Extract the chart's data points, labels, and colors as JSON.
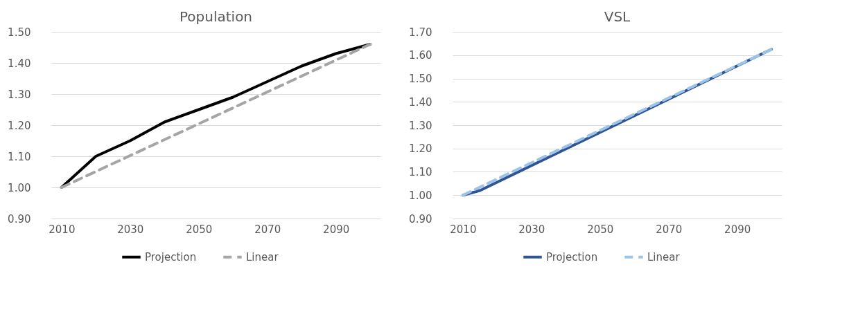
{
  "chart_data": [
    {
      "type": "line",
      "title": "Population",
      "xlim": [
        2007,
        2103
      ],
      "xticks": [
        2010,
        2030,
        2050,
        2070,
        2090
      ],
      "ylim": [
        0.9,
        1.5
      ],
      "yticks": [
        {
          "value": 0.9,
          "label": "0.90"
        },
        {
          "value": 1.0,
          "label": "1.00"
        },
        {
          "value": 1.1,
          "label": "1.10"
        },
        {
          "value": 1.2,
          "label": "1.20"
        },
        {
          "value": 1.3,
          "label": "1.30"
        },
        {
          "value": 1.4,
          "label": "1.40"
        },
        {
          "value": 1.5,
          "label": "1.50"
        }
      ],
      "grid": "y",
      "legend": "bottom",
      "series": [
        {
          "name": "Projection",
          "color": "#000000",
          "line_style": "solid",
          "x": [
            2010,
            2020,
            2030,
            2040,
            2050,
            2060,
            2070,
            2080,
            2090,
            2100
          ],
          "values": [
            1.0,
            1.1,
            1.15,
            1.21,
            1.25,
            1.29,
            1.34,
            1.39,
            1.43,
            1.46
          ]
        },
        {
          "name": "Linear",
          "color": "#a5a5a5",
          "line_style": "dashed",
          "x": [
            2010,
            2100
          ],
          "values": [
            1.0,
            1.46
          ]
        }
      ]
    },
    {
      "type": "line",
      "title": "VSL",
      "xlim": [
        2007,
        2103
      ],
      "xticks": [
        2010,
        2030,
        2050,
        2070,
        2090
      ],
      "ylim": [
        0.9,
        1.7
      ],
      "yticks": [
        {
          "value": 0.9,
          "label": "0.90"
        },
        {
          "value": 1.0,
          "label": "1.00"
        },
        {
          "value": 1.1,
          "label": "1.10"
        },
        {
          "value": 1.2,
          "label": "1.20"
        },
        {
          "value": 1.3,
          "label": "1.30"
        },
        {
          "value": 1.4,
          "label": "1.40"
        },
        {
          "value": 1.5,
          "label": "1.50"
        },
        {
          "value": 1.6,
          "label": "1.60"
        },
        {
          "value": 1.7,
          "label": "1.70"
        }
      ],
      "grid": "y",
      "legend": "bottom",
      "series": [
        {
          "name": "Projection",
          "color": "#2f5597",
          "line_style": "solid",
          "x": [
            2010,
            2015,
            2100
          ],
          "values": [
            1.0,
            1.02,
            1.625
          ]
        },
        {
          "name": "Linear",
          "color": "#9dc3e6",
          "line_style": "dashed",
          "x": [
            2010,
            2100
          ],
          "values": [
            1.0,
            1.625
          ]
        }
      ]
    }
  ]
}
